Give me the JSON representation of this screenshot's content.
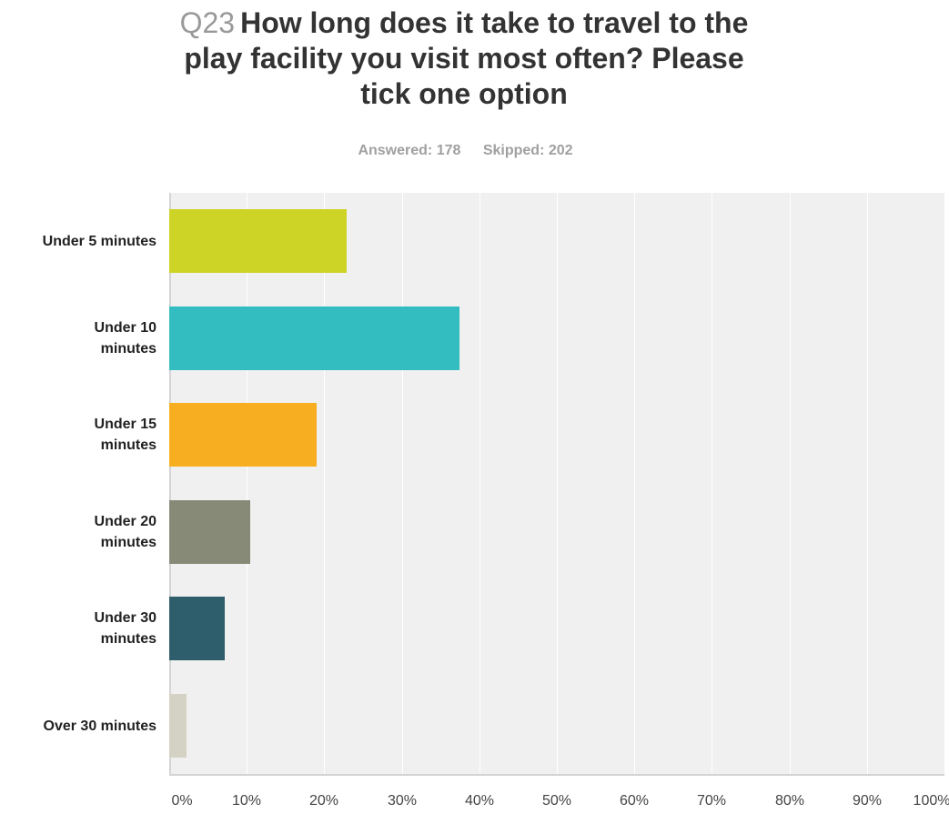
{
  "header": {
    "question_number": "Q23",
    "question_lines": [
      "How long does it take to travel to the",
      "play facility you visit most often? Please",
      "tick one option"
    ],
    "answered": "Answered: 178",
    "skipped": "Skipped: 202"
  },
  "chart_data": {
    "type": "bar",
    "orientation": "horizontal",
    "title": "Q23 How long does it take to travel to the play facility you visit most often? Please tick one option",
    "categories": [
      "Under 5 minutes",
      "Under 10 minutes",
      "Under 15 minutes",
      "Under 20 minutes",
      "Under 30 minutes",
      "Over 30 minutes"
    ],
    "category_label_lines": [
      [
        "Under 5 minutes"
      ],
      [
        "Under 10",
        "minutes"
      ],
      [
        "Under 15",
        "minutes"
      ],
      [
        "Under 20",
        "minutes"
      ],
      [
        "Under 30",
        "minutes"
      ],
      [
        "Over 30 minutes"
      ]
    ],
    "values": [
      22.9,
      37.4,
      19.0,
      10.5,
      7.2,
      2.2
    ],
    "colors": [
      "#cdd425",
      "#33bdc0",
      "#f7ae20",
      "#888a78",
      "#2e5e6b",
      "#d4d2c4"
    ],
    "xlim": [
      0,
      100
    ],
    "xticks": [
      0,
      10,
      20,
      30,
      40,
      50,
      60,
      70,
      80,
      90,
      100
    ],
    "xtick_labels": [
      "0%",
      "10%",
      "20%",
      "30%",
      "40%",
      "50%",
      "60%",
      "70%",
      "80%",
      "90%",
      "100%"
    ],
    "grid": true
  }
}
